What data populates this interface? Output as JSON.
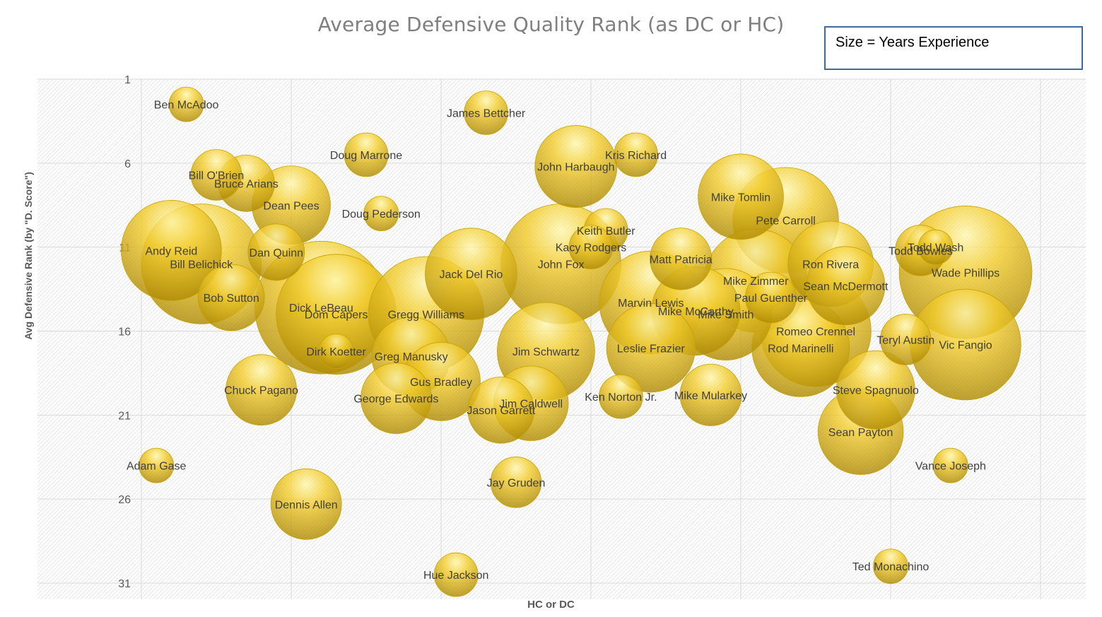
{
  "chart_data": {
    "type": "bubble",
    "title": "Average Defensive Quality Rank (as DC or HC)",
    "xlabel": "HC or DC",
    "ylabel": "Avg Defensive Rank (by \"D. Score\")",
    "size_note": "Size = Years Experience",
    "y_reversed": true,
    "ylim": [
      1,
      32
    ],
    "yticks": [
      1,
      6,
      11,
      16,
      21,
      26,
      31
    ],
    "xlim": [
      0,
      63
    ],
    "grid": true,
    "colors": {
      "bubble_light": "#fff7b0",
      "bubble_mid": "#f2cc2e",
      "bubble_dark": "#a88400"
    },
    "points": [
      {
        "name": "Ben McAdoo",
        "x": 3.0,
        "y": 2.5,
        "size": 1
      },
      {
        "name": "James Bettcher",
        "x": 23.0,
        "y": 3.0,
        "size": 2
      },
      {
        "name": "Doug Marrone",
        "x": 15.0,
        "y": 5.5,
        "size": 2
      },
      {
        "name": "Kris Richard",
        "x": 33.0,
        "y": 5.5,
        "size": 2
      },
      {
        "name": "John Harbaugh",
        "x": 29.0,
        "y": 6.2,
        "size": 10
      },
      {
        "name": "Bill O'Brien",
        "x": 5.0,
        "y": 6.7,
        "size": 3
      },
      {
        "name": "Bruce Arians",
        "x": 7.0,
        "y": 7.2,
        "size": 4
      },
      {
        "name": "Dean Pees",
        "x": 10.0,
        "y": 8.5,
        "size": 9
      },
      {
        "name": "Doug Pederson",
        "x": 16.0,
        "y": 9.0,
        "size": 1
      },
      {
        "name": "Mike Tomlin",
        "x": 40.0,
        "y": 8.0,
        "size": 11
      },
      {
        "name": "Pete Carroll",
        "x": 43.0,
        "y": 9.4,
        "size": 18
      },
      {
        "name": "Keith Butler",
        "x": 31.0,
        "y": 10.0,
        "size": 2
      },
      {
        "name": "Kacy Rodgers",
        "x": 30.0,
        "y": 11.0,
        "size": 2
      },
      {
        "name": "Andy Reid",
        "x": 2.0,
        "y": 11.2,
        "size": 16
      },
      {
        "name": "Bill Belichick",
        "x": 4.0,
        "y": 12.0,
        "size": 24
      },
      {
        "name": "Dan Quinn",
        "x": 9.0,
        "y": 11.3,
        "size": 4
      },
      {
        "name": "John Fox",
        "x": 28.0,
        "y": 12.0,
        "size": 24
      },
      {
        "name": "Jack Del Rio",
        "x": 22.0,
        "y": 12.6,
        "size": 13
      },
      {
        "name": "Matt Patricia",
        "x": 36.0,
        "y": 11.7,
        "size": 5
      },
      {
        "name": "Ron Rivera",
        "x": 46.0,
        "y": 12.0,
        "size": 11
      },
      {
        "name": "Todd Bowles",
        "x": 52.0,
        "y": 11.2,
        "size": 3
      },
      {
        "name": "Todd Wash",
        "x": 53.0,
        "y": 11.0,
        "size": 1
      },
      {
        "name": "Wade Phillips",
        "x": 55.0,
        "y": 12.5,
        "size": 30
      },
      {
        "name": "Mike Zimmer",
        "x": 41.0,
        "y": 13.0,
        "size": 17
      },
      {
        "name": "Sean McDermott",
        "x": 47.0,
        "y": 13.3,
        "size": 9
      },
      {
        "name": "Bob Sutton",
        "x": 6.0,
        "y": 14.0,
        "size": 6
      },
      {
        "name": "Paul Guenther",
        "x": 42.0,
        "y": 14.0,
        "size": 3
      },
      {
        "name": "Marvin Lewis",
        "x": 34.0,
        "y": 14.3,
        "size": 17
      },
      {
        "name": "Mike McCarthy",
        "x": 37.0,
        "y": 14.8,
        "size": 12
      },
      {
        "name": "Mike Smith",
        "x": 39.0,
        "y": 15.0,
        "size": 13
      },
      {
        "name": "Dick LeBeau",
        "x": 12.0,
        "y": 14.6,
        "size": 30
      },
      {
        "name": "Dom Capers",
        "x": 13.0,
        "y": 15.0,
        "size": 24
      },
      {
        "name": "Gregg Williams",
        "x": 19.0,
        "y": 15.0,
        "size": 22
      },
      {
        "name": "Romeo Crennel",
        "x": 45.0,
        "y": 16.0,
        "size": 20
      },
      {
        "name": "Rod Marinelli",
        "x": 44.0,
        "y": 17.0,
        "size": 15
      },
      {
        "name": "Teryl Austin",
        "x": 51.0,
        "y": 16.5,
        "size": 3
      },
      {
        "name": "Vic Fangio",
        "x": 55.0,
        "y": 16.8,
        "size": 20
      },
      {
        "name": "Leslie Frazier",
        "x": 34.0,
        "y": 17.0,
        "size": 12
      },
      {
        "name": "Jim Schwartz",
        "x": 27.0,
        "y": 17.2,
        "size": 15
      },
      {
        "name": "Dirk Koetter",
        "x": 13.0,
        "y": 17.2,
        "size": 1
      },
      {
        "name": "Greg Manusky",
        "x": 18.0,
        "y": 17.5,
        "size": 9
      },
      {
        "name": "Gus Bradley",
        "x": 20.0,
        "y": 19.0,
        "size": 9
      },
      {
        "name": "Chuck Pagano",
        "x": 8.0,
        "y": 19.5,
        "size": 7
      },
      {
        "name": "Steve Spagnuolo",
        "x": 49.0,
        "y": 19.5,
        "size": 9
      },
      {
        "name": "George Edwards",
        "x": 17.0,
        "y": 20.0,
        "size": 7
      },
      {
        "name": "Ken Norton Jr.",
        "x": 32.0,
        "y": 19.9,
        "size": 2
      },
      {
        "name": "Mike Mularkey",
        "x": 38.0,
        "y": 19.8,
        "size": 5
      },
      {
        "name": "Jim Caldwell",
        "x": 26.0,
        "y": 20.3,
        "size": 8
      },
      {
        "name": "Jason Garrett",
        "x": 24.0,
        "y": 20.7,
        "size": 6
      },
      {
        "name": "Sean Payton",
        "x": 48.0,
        "y": 22.0,
        "size": 11
      },
      {
        "name": "Adam Gase",
        "x": 1.0,
        "y": 24.0,
        "size": 1
      },
      {
        "name": "Vance Joseph",
        "x": 54.0,
        "y": 24.0,
        "size": 1
      },
      {
        "name": "Jay Gruden",
        "x": 25.0,
        "y": 25.0,
        "size": 3
      },
      {
        "name": "Dennis Allen",
        "x": 11.0,
        "y": 26.3,
        "size": 7
      },
      {
        "name": "Hue Jackson",
        "x": 21.0,
        "y": 30.5,
        "size": 2
      },
      {
        "name": "Ted Monachino",
        "x": 50.0,
        "y": 30.0,
        "size": 1
      }
    ]
  }
}
